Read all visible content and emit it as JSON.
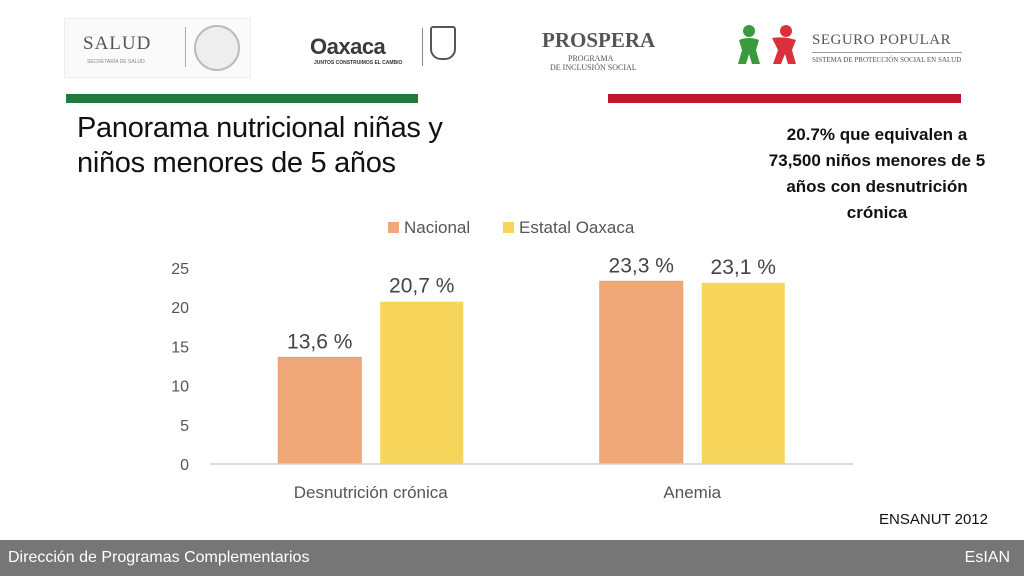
{
  "logos": {
    "salud": {
      "name": "SALUD",
      "subtitle": "SECRETARÍA DE SALUD"
    },
    "oaxaca": {
      "name": "Oaxaca",
      "subtitle": "JUNTOS CONSTRUIMOS EL CAMBIO"
    },
    "prospera": {
      "name": "PROSPERA",
      "line1": "PROGRAMA",
      "line2": "DE INCLUSIÓN SOCIAL"
    },
    "seguro": {
      "name": "SEGURO POPULAR",
      "subtitle": "SISTEMA DE PROTECCIÓN SOCIAL EN SALUD"
    }
  },
  "colors": {
    "accent_green": "#1f7a3c",
    "accent_red": "#c0152a",
    "footer": "#767676"
  },
  "title": "Panorama nutricional niñas y niños menores de 5 años",
  "note": "20.7%  que equivalen a 73,500 niños menores de 5 años con desnutrición crónica",
  "source": "ENSANUT 2012",
  "footer": {
    "left": "Dirección de Programas Complementarios",
    "right": "EsIAN"
  },
  "chart_data": {
    "type": "bar",
    "categories": [
      "Desnutrición crónica",
      "Anemia"
    ],
    "series": [
      {
        "name": "Nacional",
        "values": [
          13.6,
          23.3
        ],
        "labels": [
          "13,6 %",
          "23,3 %"
        ],
        "color": "#f0a878"
      },
      {
        "name": "Estatal Oaxaca",
        "values": [
          20.7,
          23.1
        ],
        "labels": [
          "20,7 %",
          "23,1 %"
        ],
        "color": "#f7d45a"
      }
    ],
    "ylim": [
      0,
      25
    ],
    "yticks": [
      "0",
      "5",
      "10",
      "15",
      "20",
      "25"
    ],
    "legend": "top",
    "grid": false
  }
}
